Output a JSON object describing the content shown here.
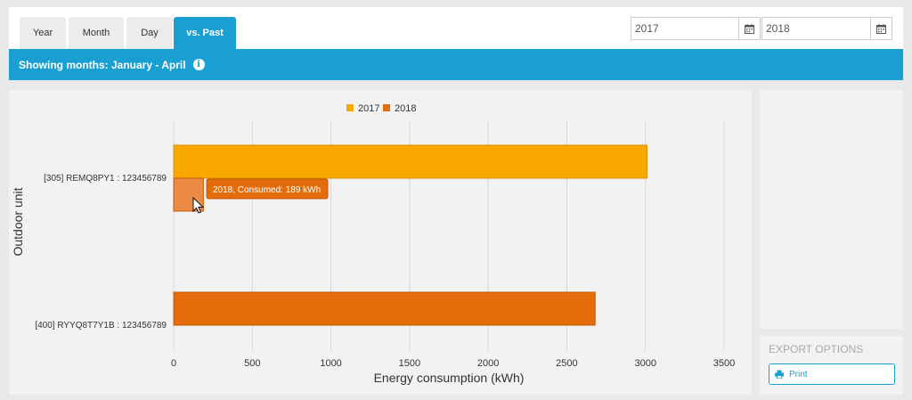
{
  "tabs": [
    {
      "label": "Year",
      "active": false
    },
    {
      "label": "Month",
      "active": false
    },
    {
      "label": "Day",
      "active": false
    },
    {
      "label": "vs. Past",
      "active": true
    }
  ],
  "date_range": {
    "from": "2017",
    "to": "2018"
  },
  "info_bar": {
    "text": "Showing months: January - April"
  },
  "export": {
    "title": "EXPORT OPTIONS",
    "print_label": "Print"
  },
  "tooltip": {
    "text": "2018, Consumed: 189 kWh"
  },
  "colors": {
    "accent": "#1a9fd3",
    "series_2017": "#f9a800",
    "series_2018": "#e46c0a",
    "series_2018_hover": "#ea8a44"
  },
  "chart_data": {
    "type": "bar",
    "orientation": "horizontal",
    "categories": [
      "[305] REMQ8PY1 : 123456789",
      "[400] RYYQ8T7Y1B : 123456789"
    ],
    "series": [
      {
        "name": "2017",
        "values": [
          3010,
          0
        ]
      },
      {
        "name": "2018",
        "values": [
          189,
          2680
        ]
      }
    ],
    "xlabel": "Energy consumption (kWh)",
    "ylabel": "Outdoor unit",
    "xlim": [
      0,
      3500
    ],
    "ticks": [
      "0",
      "500",
      "1000",
      "1500",
      "2000",
      "2500",
      "3000",
      "3500"
    ],
    "legend": "top-center",
    "grid": true
  }
}
